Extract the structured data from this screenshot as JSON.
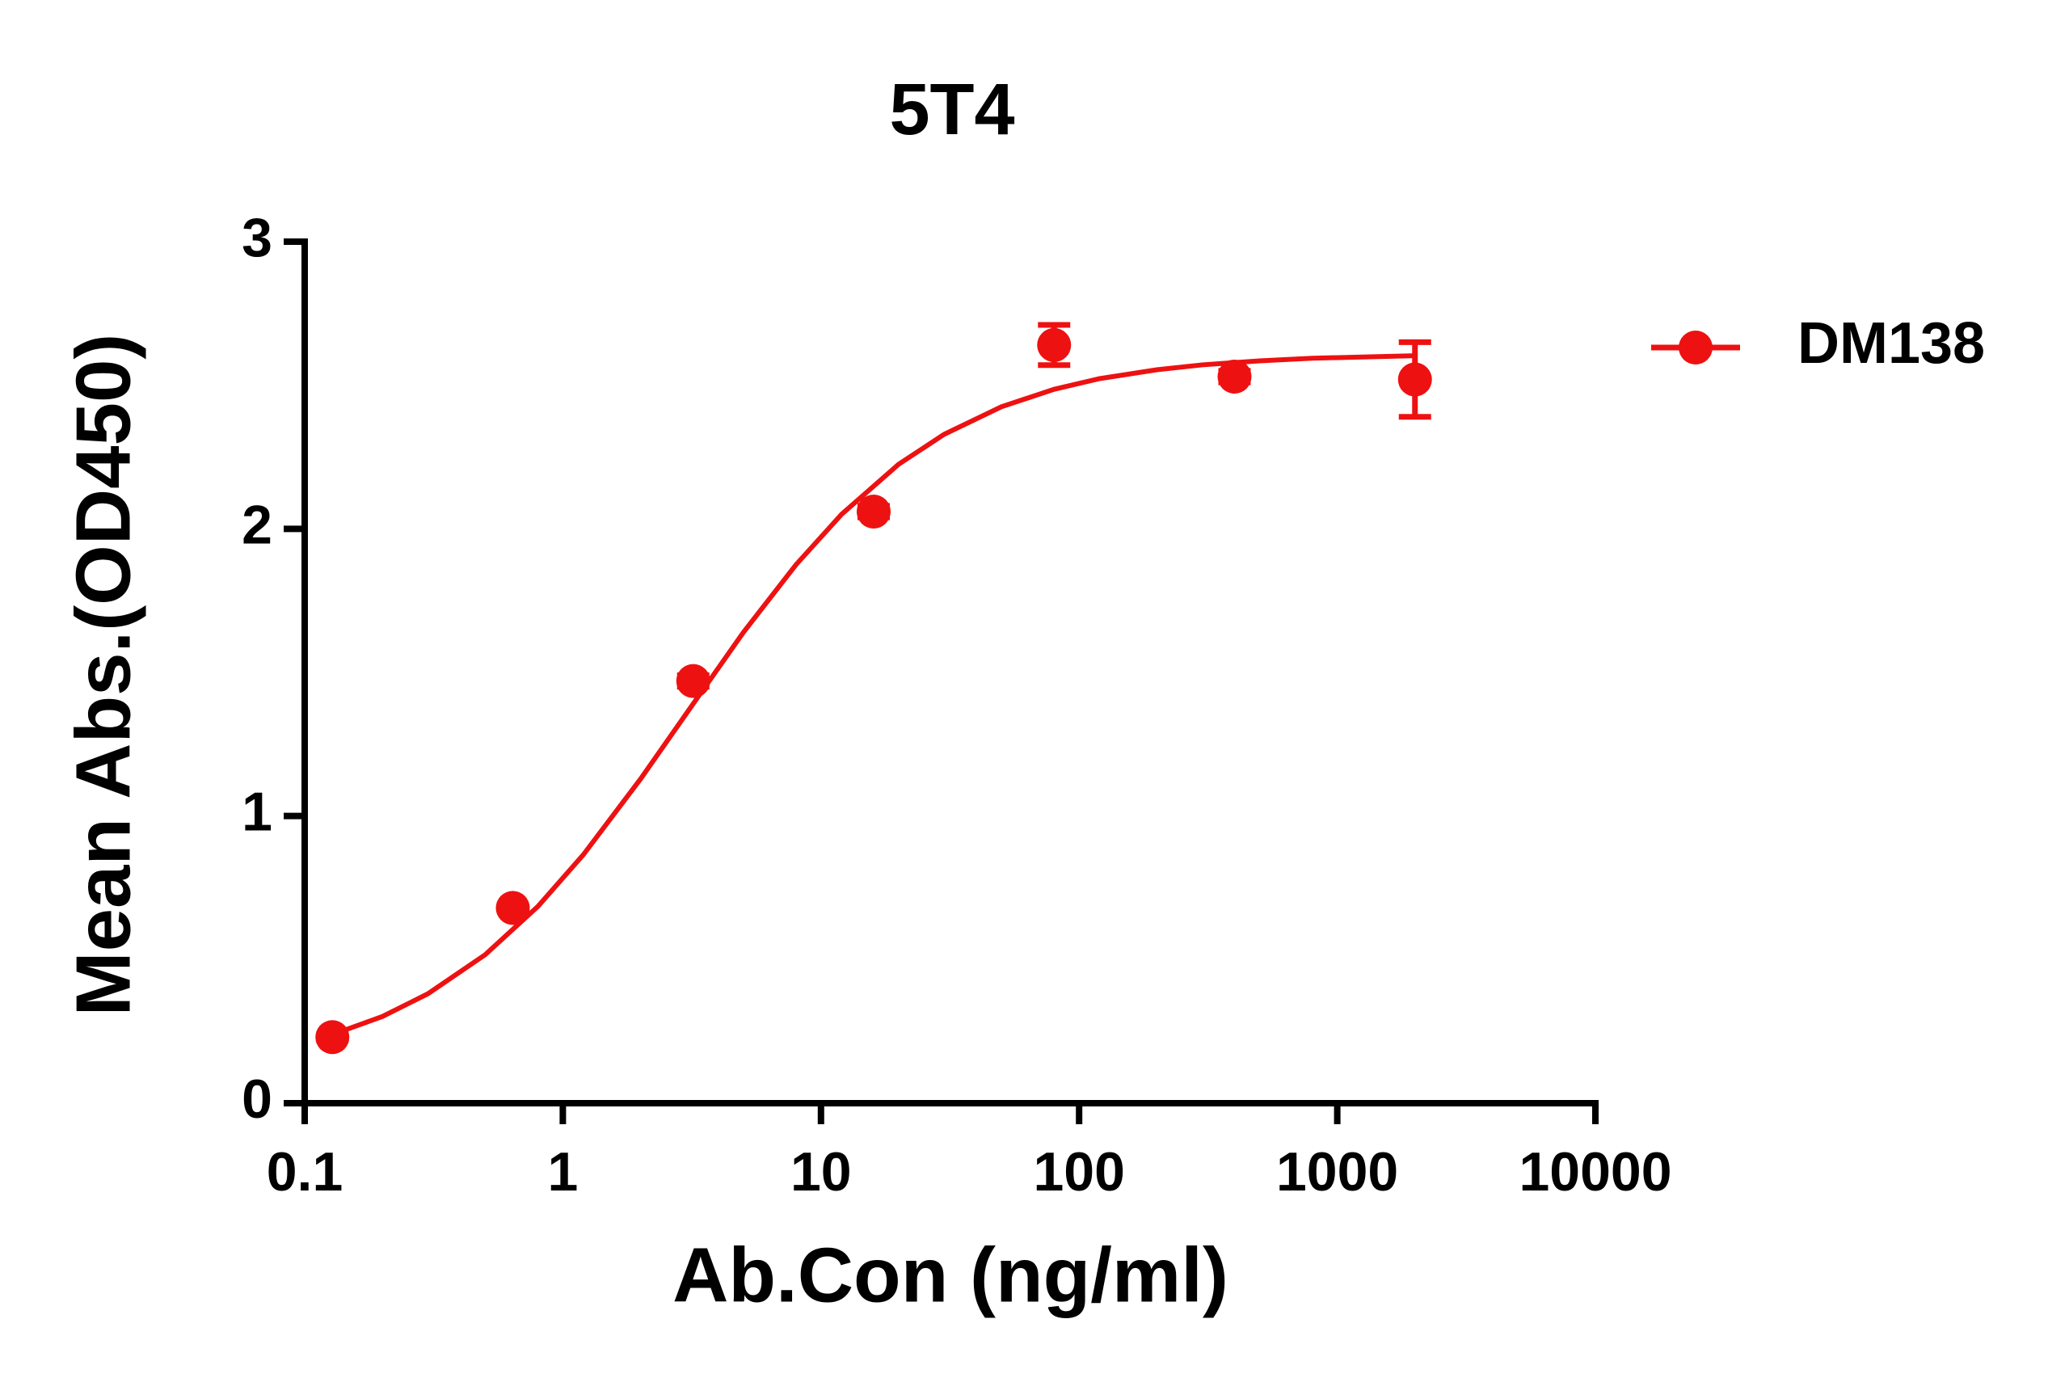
{
  "chart_data": {
    "type": "scatter",
    "title": "5T4",
    "x_label": "Ab.Con (ng/ml)",
    "y_label": "Mean Abs.(OD450)",
    "xscale": "log",
    "xlim": [
      0.1,
      10000
    ],
    "xticks": [
      0.1,
      1,
      10,
      100,
      1000,
      10000
    ],
    "ylim": [
      0,
      3
    ],
    "yticks": [
      0,
      1,
      2,
      3
    ],
    "grid": false,
    "legend": "right",
    "series": [
      {
        "name": "DM138",
        "color": "#ee1111",
        "x": [
          0.128,
          0.64,
          3.2,
          16,
          80,
          400,
          2000
        ],
        "values": [
          0.23,
          0.68,
          1.47,
          2.06,
          2.64,
          2.53,
          2.52
        ],
        "errors": [
          0.01,
          0.01,
          0.02,
          0.02,
          0.07,
          0.02,
          0.13
        ],
        "fit": {
          "x": [
            0.128,
            0.2,
            0.3,
            0.5,
            0.8,
            1.2,
            2,
            3,
            5,
            8,
            12,
            20,
            30,
            50,
            80,
            120,
            200,
            300,
            500,
            800,
            1200,
            2000
          ],
          "values": [
            0.239,
            0.302,
            0.381,
            0.517,
            0.685,
            0.865,
            1.129,
            1.355,
            1.639,
            1.875,
            2.05,
            2.225,
            2.329,
            2.425,
            2.486,
            2.523,
            2.554,
            2.571,
            2.585,
            2.594,
            2.598,
            2.603
          ]
        }
      }
    ]
  }
}
